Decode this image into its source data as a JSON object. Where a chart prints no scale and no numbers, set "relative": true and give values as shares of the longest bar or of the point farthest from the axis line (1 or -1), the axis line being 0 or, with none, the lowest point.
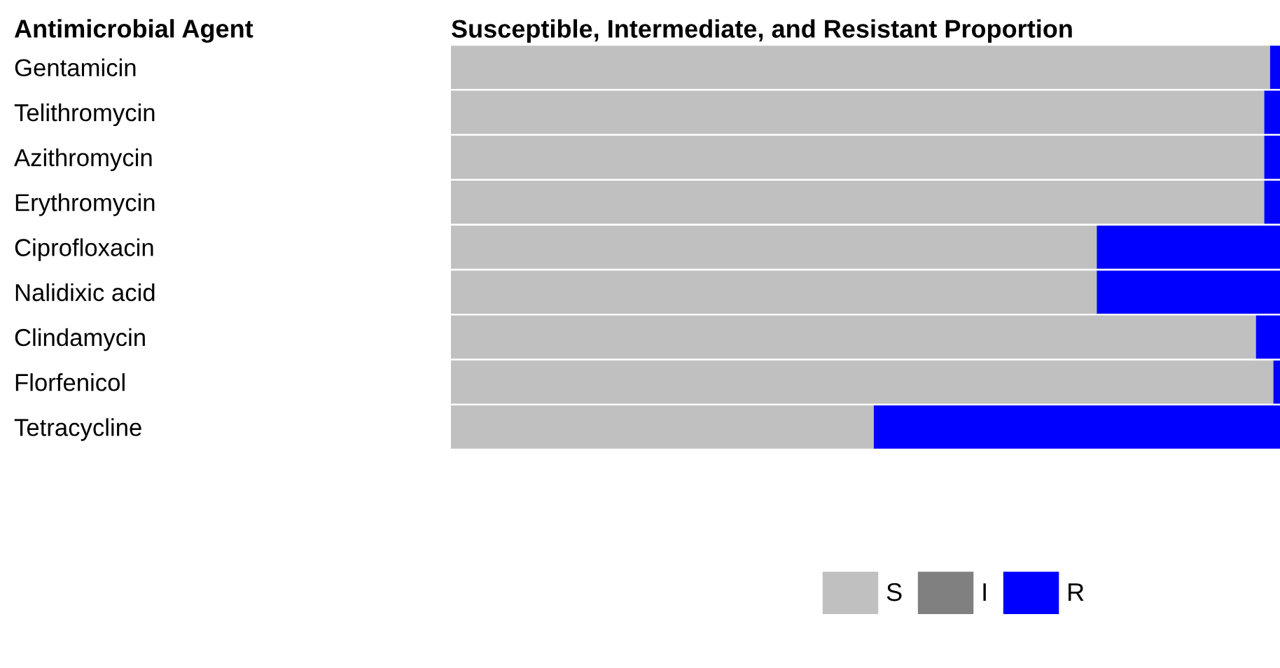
{
  "chart_data": {
    "type": "bar",
    "orientation": "horizontal",
    "stacked": true,
    "relative": true,
    "title": "Susceptible, Intermediate, and Resistant Proportion",
    "annotations": [
      "Antimicrobial Agent"
    ],
    "categories": [
      "Gentamicin",
      "Telithromycin",
      "Azithromycin",
      "Erythromycin",
      "Ciprofloxacin",
      "Nalidixic acid",
      "Clindamycin",
      "Florfenicol",
      "Tetracycline"
    ],
    "series": [
      {
        "name": "S",
        "color": "#c0c0c0",
        "values": [
          0.988,
          0.981,
          0.981,
          0.981,
          0.779,
          0.779,
          0.971,
          0.992,
          0.51
        ]
      },
      {
        "name": "I",
        "color": "#808080",
        "values": [
          0,
          0,
          0,
          0,
          0,
          0,
          0,
          0,
          0
        ]
      },
      {
        "name": "R",
        "color": "#0000ff",
        "values": [
          0.012,
          0.019,
          0.019,
          0.019,
          0.221,
          0.221,
          0.029,
          0.008,
          0.49
        ]
      }
    ],
    "legend": "bottom",
    "grid": false
  }
}
